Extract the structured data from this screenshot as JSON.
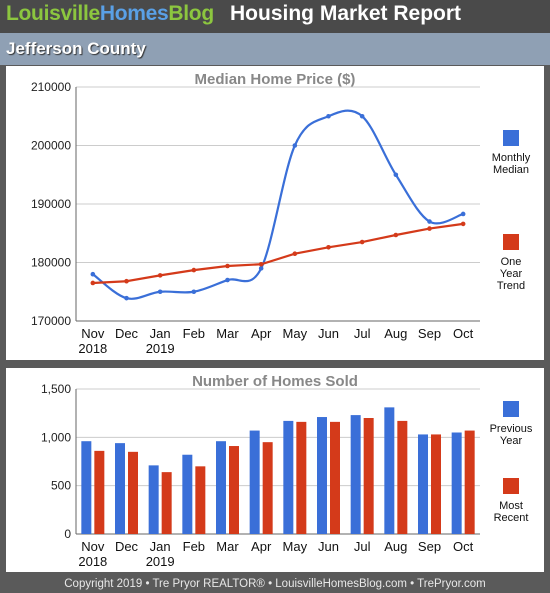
{
  "header": {
    "brand_part1": "Louisville",
    "brand_part2": "Homes",
    "brand_part3": "Blog",
    "report_title": "Housing Market Report"
  },
  "county": "Jefferson County",
  "footer": "Copyright 2019 • Tre Pryor REALTOR® • LouisvilleHomesBlog.com • TrePryor.com",
  "colors": {
    "blue": "#3a6fd8",
    "red": "#d43a1a",
    "brand_green": "#8cc63f",
    "brand_blue": "#5aa0e6"
  },
  "chart_data": [
    {
      "type": "line",
      "title": "Median Home Price ($)",
      "categories": [
        "Nov",
        "Dec",
        "Jan",
        "Feb",
        "Mar",
        "Apr",
        "May",
        "Jun",
        "Jul",
        "Aug",
        "Sep",
        "Oct"
      ],
      "year_labels": [
        "2018",
        "",
        "2019",
        "",
        "",
        "",
        "",
        "",
        "",
        "",
        "",
        ""
      ],
      "ylim": [
        170000,
        210000
      ],
      "yticks": [
        "170000",
        "180000",
        "190000",
        "200000",
        "210000"
      ],
      "grid": true,
      "legend_position": "right",
      "series": [
        {
          "name": "Monthly Median",
          "name_lines": [
            "Monthly",
            "Median"
          ],
          "color": "#3a6fd8",
          "smooth": true,
          "values": [
            178000,
            173900,
            175000,
            175000,
            177000,
            179000,
            200000,
            205000,
            205000,
            195000,
            187000,
            188300
          ]
        },
        {
          "name": "One Year Trend",
          "name_lines": [
            "One",
            "Year",
            "Trend"
          ],
          "color": "#d43a1a",
          "smooth": false,
          "values": [
            176500,
            176800,
            177800,
            178700,
            179400,
            179700,
            181500,
            182600,
            183500,
            184700,
            185800,
            186600
          ]
        }
      ]
    },
    {
      "type": "bar",
      "title": "Number of Homes Sold",
      "categories": [
        "Nov",
        "Dec",
        "Jan",
        "Feb",
        "Mar",
        "Apr",
        "May",
        "Jun",
        "Jul",
        "Aug",
        "Sep",
        "Oct"
      ],
      "year_labels": [
        "2018",
        "",
        "2019",
        "",
        "",
        "",
        "",
        "",
        "",
        "",
        "",
        ""
      ],
      "ylim": [
        0,
        1500
      ],
      "yticks": [
        "0",
        "500",
        "1,000",
        "1,500"
      ],
      "grid": true,
      "legend_position": "right",
      "series": [
        {
          "name": "Previous Year",
          "name_lines": [
            "Previous",
            "Year"
          ],
          "color": "#3a6fd8",
          "values": [
            960,
            940,
            710,
            820,
            960,
            1070,
            1170,
            1210,
            1230,
            1310,
            1030,
            1050
          ]
        },
        {
          "name": "Most Recent",
          "name_lines": [
            "Most",
            "Recent"
          ],
          "color": "#d43a1a",
          "values": [
            860,
            850,
            640,
            700,
            910,
            950,
            1160,
            1160,
            1200,
            1170,
            1030,
            1070
          ]
        }
      ]
    }
  ]
}
